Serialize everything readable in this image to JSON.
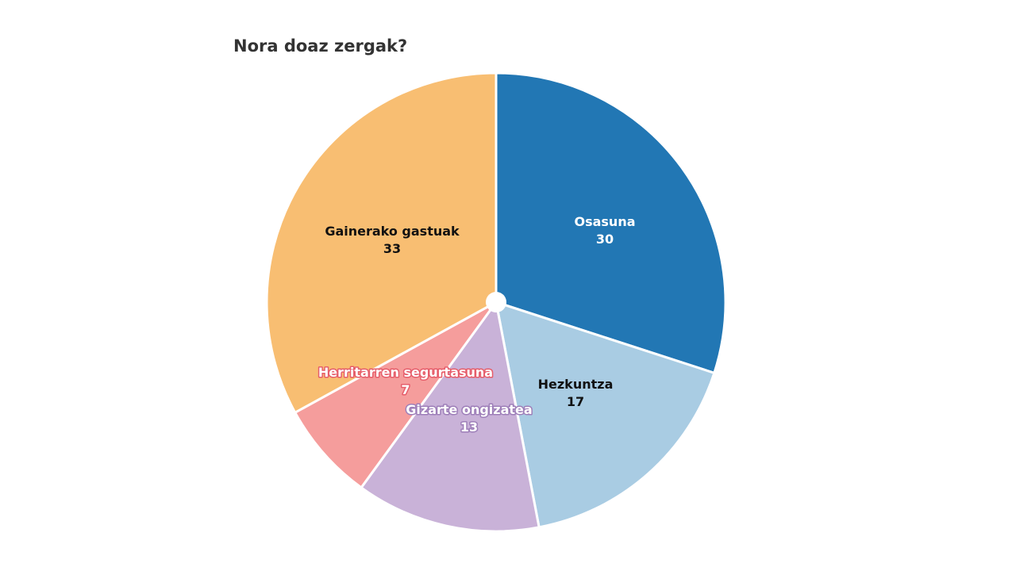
{
  "chart_data": {
    "type": "pie",
    "title": "Nora doaz zergak?",
    "slices": [
      {
        "label": "Osasuna",
        "value": 30,
        "color": "#2277b4"
      },
      {
        "label": "Hezkuntza",
        "value": 17,
        "color": "#a9cce3"
      },
      {
        "label": "Gizarte ongizatea",
        "value": 13,
        "color": "#c9b2d8"
      },
      {
        "label": "Herritarren segurtasuna",
        "value": 7,
        "color": "#f59d9c"
      },
      {
        "label": "Gainerako gastuak",
        "value": 33,
        "color": "#f8be72"
      }
    ],
    "start_angle_deg": 0,
    "direction": "clockwise",
    "donut_hole": true,
    "legend": "none"
  }
}
